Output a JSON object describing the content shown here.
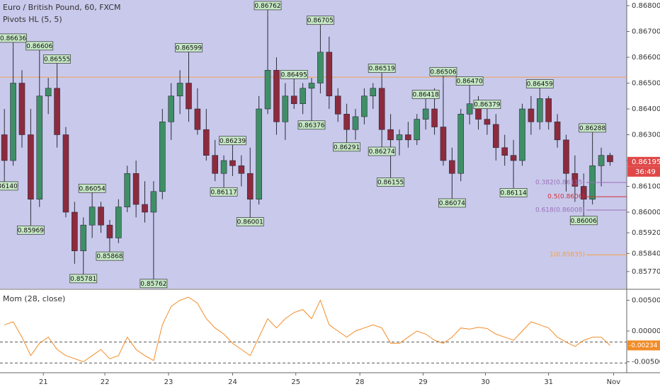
{
  "chart_data": [
    {
      "type": "candlestick",
      "title": "Euro / British Pound, 60, FXCM",
      "subtitle": "Pivots HL (5, 5)",
      "up_color": "#3f8f66",
      "down_color": "#8c2b3d",
      "background": "#c9c9ec",
      "xlim": [
        -0.5,
        70.9
      ],
      "ylim": [
        0.85704,
        0.86822
      ],
      "yticks": [
        {
          "value": 0.868,
          "label": "0.86800"
        },
        {
          "value": 0.867,
          "label": "0.86700"
        },
        {
          "value": 0.866,
          "label": "0.86600"
        },
        {
          "value": 0.865,
          "label": "0.86500"
        },
        {
          "value": 0.864,
          "label": "0.86400"
        },
        {
          "value": 0.863,
          "label": "0.86300"
        },
        {
          "value": 0.862,
          "label": "0.86200"
        },
        {
          "value": 0.861,
          "label": "0.86100"
        },
        {
          "value": 0.86,
          "label": "0.86000"
        },
        {
          "value": 0.8592,
          "label": "0.85920"
        },
        {
          "value": 0.8584,
          "label": "0.85840"
        },
        {
          "value": 0.8577,
          "label": "0.85770"
        }
      ],
      "open": [
        0.863,
        0.862,
        0.865,
        0.863,
        0.8605,
        0.8645,
        0.8648,
        0.863,
        0.86,
        0.8585,
        0.8595,
        0.8602,
        0.8595,
        0.859,
        0.8602,
        0.8615,
        0.8603,
        0.86,
        0.8608,
        0.8635,
        0.8645,
        0.865,
        0.864,
        0.8632,
        0.8622,
        0.8615,
        0.862,
        0.8618,
        0.8615,
        0.8605,
        0.864,
        0.8655,
        0.8635,
        0.8645,
        0.8642,
        0.8648,
        0.865,
        0.8662,
        0.8645,
        0.8638,
        0.8632,
        0.8637,
        0.8645,
        0.8648,
        0.8632,
        0.8628,
        0.863,
        0.8628,
        0.8636,
        0.864,
        0.8633,
        0.862,
        0.8615,
        0.8638,
        0.8642,
        0.8636,
        0.8634,
        0.8625,
        0.8622,
        0.862,
        0.864,
        0.8635,
        0.8644,
        0.8635,
        0.8628,
        0.8615,
        0.861,
        0.8605,
        0.8618,
        0.8622
      ],
      "high": [
        0.864,
        0.86636,
        0.8655,
        0.864,
        0.86606,
        0.8652,
        0.86555,
        0.8633,
        0.8604,
        0.8598,
        0.86054,
        0.8604,
        0.8597,
        0.8605,
        0.8618,
        0.862,
        0.8612,
        0.8612,
        0.864,
        0.865,
        0.8655,
        0.86599,
        0.8648,
        0.864,
        0.8628,
        0.8622,
        0.86239,
        0.8622,
        0.8625,
        0.8645,
        0.86762,
        0.866,
        0.865,
        0.86495,
        0.865,
        0.8652,
        0.86705,
        0.8668,
        0.8648,
        0.8642,
        0.864,
        0.8648,
        0.865,
        0.86519,
        0.8638,
        0.8632,
        0.8635,
        0.8638,
        0.86418,
        0.8648,
        0.86506,
        0.8625,
        0.864,
        0.8647,
        0.8645,
        0.86379,
        0.8638,
        0.863,
        0.8628,
        0.8642,
        0.8645,
        0.86459,
        0.8645,
        0.8638,
        0.863,
        0.8622,
        0.8615,
        0.86288,
        0.8625,
        0.8623
      ],
      "low": [
        0.8614,
        0.8618,
        0.8625,
        0.85969,
        0.8602,
        0.8638,
        0.8625,
        0.8598,
        0.858,
        0.85781,
        0.859,
        0.8592,
        0.85868,
        0.8588,
        0.86,
        0.8598,
        0.8596,
        0.85762,
        0.8605,
        0.8628,
        0.8638,
        0.8635,
        0.863,
        0.862,
        0.8612,
        0.86117,
        0.8614,
        0.861,
        0.86001,
        0.8603,
        0.8638,
        0.863,
        0.8628,
        0.864,
        0.8638,
        0.86376,
        0.8646,
        0.864,
        0.8635,
        0.86291,
        0.8628,
        0.8634,
        0.864,
        0.86274,
        0.86155,
        0.8622,
        0.8625,
        0.8626,
        0.8632,
        0.863,
        0.8618,
        0.86074,
        0.8612,
        0.8634,
        0.8632,
        0.863,
        0.862,
        0.8618,
        0.86114,
        0.8618,
        0.863,
        0.8632,
        0.8632,
        0.8625,
        0.8608,
        0.8604,
        0.86006,
        0.8603,
        0.861,
        0.8618
      ],
      "close": [
        0.862,
        0.865,
        0.863,
        0.8605,
        0.8645,
        0.8648,
        0.863,
        0.86,
        0.8585,
        0.8595,
        0.8602,
        0.8595,
        0.859,
        0.8602,
        0.8615,
        0.8603,
        0.86,
        0.8608,
        0.8635,
        0.8645,
        0.865,
        0.864,
        0.8632,
        0.8622,
        0.8615,
        0.862,
        0.8618,
        0.8615,
        0.8605,
        0.864,
        0.8655,
        0.8635,
        0.8645,
        0.8642,
        0.8648,
        0.865,
        0.8662,
        0.8645,
        0.8638,
        0.8632,
        0.8637,
        0.8645,
        0.8648,
        0.8632,
        0.8628,
        0.863,
        0.8628,
        0.8636,
        0.864,
        0.8633,
        0.862,
        0.8615,
        0.8638,
        0.8642,
        0.8636,
        0.8634,
        0.8625,
        0.8622,
        0.862,
        0.864,
        0.8635,
        0.8644,
        0.8635,
        0.8628,
        0.8615,
        0.861,
        0.8605,
        0.8618,
        0.8622,
        0.86195
      ],
      "pivots": [
        {
          "x": 0,
          "value": 0.8614,
          "label": "0.86140",
          "kind": "low"
        },
        {
          "x": 1,
          "value": 0.86636,
          "label": "0.86636",
          "kind": "high"
        },
        {
          "x": 3,
          "value": 0.85969,
          "label": "0.85969",
          "kind": "low"
        },
        {
          "x": 4,
          "value": 0.86606,
          "label": "0.86606",
          "kind": "high"
        },
        {
          "x": 6,
          "value": 0.86555,
          "label": "0.86555",
          "kind": "high"
        },
        {
          "x": 9,
          "value": 0.85781,
          "label": "0.85781",
          "kind": "low"
        },
        {
          "x": 10,
          "value": 0.86054,
          "label": "0.86054",
          "kind": "high"
        },
        {
          "x": 12,
          "value": 0.85868,
          "label": "0.85868",
          "kind": "low"
        },
        {
          "x": 17,
          "value": 0.85762,
          "label": "0.85762",
          "kind": "low"
        },
        {
          "x": 21,
          "value": 0.86599,
          "label": "0.86599",
          "kind": "high"
        },
        {
          "x": 25,
          "value": 0.86117,
          "label": "0.86117",
          "kind": "low"
        },
        {
          "x": 26,
          "value": 0.86239,
          "label": "0.86239",
          "kind": "high"
        },
        {
          "x": 28,
          "value": 0.86001,
          "label": "0.86001",
          "kind": "low"
        },
        {
          "x": 30,
          "value": 0.86762,
          "label": "0.86762",
          "kind": "high"
        },
        {
          "x": 33,
          "value": 0.86495,
          "label": "0.86495",
          "kind": "high"
        },
        {
          "x": 35,
          "value": 0.86376,
          "label": "0.86376",
          "kind": "low"
        },
        {
          "x": 36,
          "value": 0.86705,
          "label": "0.86705",
          "kind": "high"
        },
        {
          "x": 39,
          "value": 0.86291,
          "label": "0.86291",
          "kind": "low"
        },
        {
          "x": 43,
          "value": 0.86519,
          "label": "0.86519",
          "kind": "high"
        },
        {
          "x": 43,
          "value": 0.86274,
          "label": "0.86274",
          "kind": "low"
        },
        {
          "x": 44,
          "value": 0.86155,
          "label": "0.86155",
          "kind": "low"
        },
        {
          "x": 48,
          "value": 0.86418,
          "label": "0.86418",
          "kind": "high"
        },
        {
          "x": 50,
          "value": 0.86506,
          "label": "0.86506",
          "kind": "high"
        },
        {
          "x": 51,
          "value": 0.86074,
          "label": "0.86074",
          "kind": "low"
        },
        {
          "x": 53,
          "value": 0.8647,
          "label": "0.86470",
          "kind": "high"
        },
        {
          "x": 55,
          "value": 0.86379,
          "label": "0.86379",
          "kind": "high"
        },
        {
          "x": 58,
          "value": 0.86114,
          "label": "0.86114",
          "kind": "low"
        },
        {
          "x": 61,
          "value": 0.86459,
          "label": "0.86459",
          "kind": "high"
        },
        {
          "x": 66,
          "value": 0.86006,
          "label": "0.86006",
          "kind": "low"
        },
        {
          "x": 67,
          "value": 0.86288,
          "label": "0.86288",
          "kind": "high"
        }
      ],
      "hline": {
        "value": 0.86523,
        "color": "#f0a050"
      },
      "fib_levels": [
        {
          "value": 0.86115,
          "label": "0.382(0.86115)",
          "color": "#9a70b8"
        },
        {
          "value": 0.8606,
          "label": "0.5(0.8606)",
          "color": "#d03030"
        },
        {
          "value": 0.86008,
          "label": "0.618(0.86008)",
          "color": "#9a70b8"
        },
        {
          "value": 0.85835,
          "label": "1(0.85835)",
          "color": "#f5a040"
        }
      ],
      "last_price": 0.86195,
      "countdown": "36:49",
      "tag_color": "#e04848"
    },
    {
      "type": "line",
      "title": "Mom (28, close)",
      "color": "#f28c28",
      "xlim": [
        -0.5,
        70.9
      ],
      "ylim": [
        -0.00678,
        0.00667
      ],
      "yticks": [
        {
          "value": 0.005,
          "label": "0.00500"
        },
        {
          "value": 0,
          "label": "0.00000"
        },
        {
          "value": -0.005,
          "label": "-0.00500"
        }
      ],
      "values": [
        0.001,
        0.0015,
        -0.001,
        -0.004,
        -0.002,
        -0.001,
        -0.003,
        -0.004,
        -0.0045,
        -0.005,
        -0.004,
        -0.003,
        -0.0045,
        -0.004,
        -0.001,
        -0.003,
        -0.004,
        -0.0048,
        0.001,
        0.004,
        0.005,
        0.0055,
        0.0045,
        0.002,
        0.0005,
        -0.0005,
        -0.002,
        -0.003,
        -0.004,
        -0.001,
        0.002,
        0.0005,
        0.002,
        0.003,
        0.0035,
        0.002,
        0.005,
        0.001,
        0,
        -0.001,
        0,
        0.0005,
        0.001,
        0.0005,
        -0.002,
        -0.002,
        -0.001,
        0,
        -0.0005,
        -0.0015,
        -0.002,
        -0.001,
        0.0005,
        0.0003,
        0.0006,
        0.0004,
        -0.0005,
        -0.001,
        -0.0015,
        0,
        0.0015,
        0.001,
        0.0005,
        -0.001,
        -0.0018,
        -0.0025,
        -0.0015,
        -0.001,
        -0.001,
        -0.00234
      ],
      "levels": [
        -0.0018,
        -0.0052
      ],
      "last_value": -0.00234,
      "xticks": [
        {
          "value": 4.44,
          "label": "21"
        },
        {
          "value": 11.45,
          "label": "22"
        },
        {
          "value": 18.7,
          "label": "23"
        },
        {
          "value": 26,
          "label": "24"
        },
        {
          "value": 33.2,
          "label": "25"
        },
        {
          "value": 40.5,
          "label": "28"
        },
        {
          "value": 47.7,
          "label": "29"
        },
        {
          "value": 54.8,
          "label": "30"
        },
        {
          "value": 62,
          "label": "31"
        },
        {
          "value": 69.4,
          "label": "Nov"
        }
      ]
    }
  ]
}
